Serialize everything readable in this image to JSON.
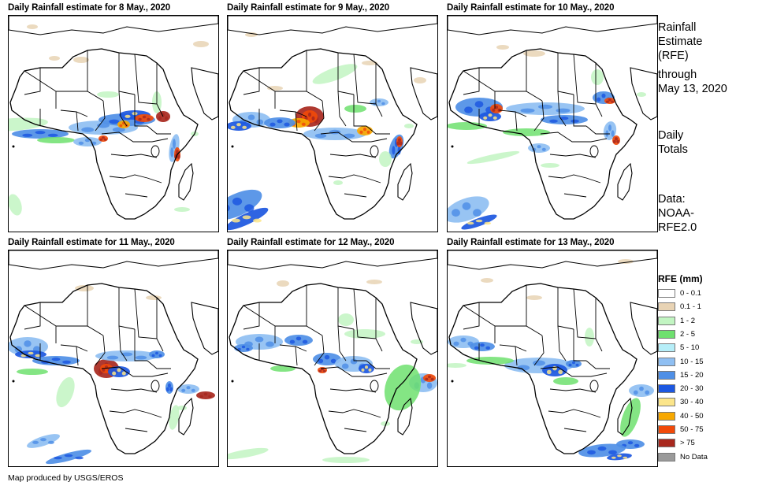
{
  "panels": [
    {
      "title": "Daily Rainfall estimate for 8 May., 2020"
    },
    {
      "title": "Daily Rainfall estimate for 9 May., 2020"
    },
    {
      "title": "Daily Rainfall estimate for 10 May., 2020"
    },
    {
      "title": "Daily Rainfall estimate for 11 May., 2020"
    },
    {
      "title": "Daily Rainfall estimate for 12 May., 2020"
    },
    {
      "title": "Daily Rainfall estimate for 13 May., 2020"
    }
  ],
  "sidebar": {
    "title_line1": "Rainfall",
    "title_line2": "Estimate",
    "title_line3": "(RFE)",
    "through_line1": "through",
    "through_line2": "May 13, 2020",
    "totals_line1": "Daily",
    "totals_line2": "Totals",
    "data_line1": "Data:",
    "data_line2": "NOAA-",
    "data_line3": "RFE2.0"
  },
  "legend": {
    "title": "RFE (mm)",
    "items": [
      {
        "label": "0 - 0.1",
        "color": "#ffffff"
      },
      {
        "label": "0.1 - 1",
        "color": "#e8d3b4"
      },
      {
        "label": "1 - 2",
        "color": "#c2f5c2"
      },
      {
        "label": "2 - 5",
        "color": "#6fe06f"
      },
      {
        "label": "5 - 10",
        "color": "#b6eef8"
      },
      {
        "label": "10 - 15",
        "color": "#8fbff2"
      },
      {
        "label": "15 - 20",
        "color": "#4f8fe6"
      },
      {
        "label": "20 - 30",
        "color": "#1c57e0"
      },
      {
        "label": "30 - 40",
        "color": "#fbe58a"
      },
      {
        "label": "40 - 50",
        "color": "#f7a800"
      },
      {
        "label": "50 - 75",
        "color": "#f04a0a"
      },
      {
        "label": "> 75",
        "color": "#a8281e"
      },
      {
        "label": "No Data",
        "color": "#9a9a9a"
      }
    ]
  },
  "credit": "Map produced by USGS/EROS"
}
